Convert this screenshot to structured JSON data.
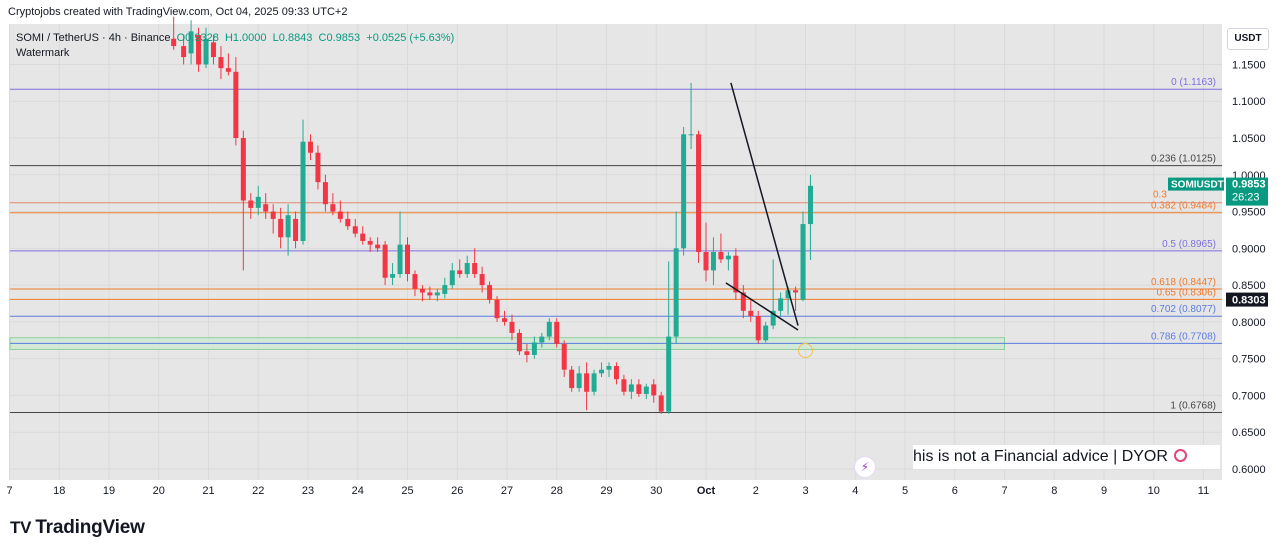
{
  "caption": "Cryptojobs created with TradingView.com, Oct 04, 2025 09:33 UTC+2",
  "legend": {
    "symbol": "SOMI / TetherUS · 4h · Binance",
    "open": "O0.9328",
    "high": "H1.0000",
    "low": "L0.8843",
    "close": "C0.9853",
    "change": "+0.0525 (+5.63%)",
    "watermark": "Watermark"
  },
  "currency": "USDT",
  "disclaimer": "his is not a Financial advice | DYOR",
  "brand": "TradingView",
  "chart_data": {
    "type": "candlestick",
    "price_range": [
      0.585,
      1.205
    ],
    "y_ticks": [
      "0.6000",
      "0.6500",
      "0.7000",
      "0.7500",
      "0.8000",
      "0.8500",
      "0.9000",
      "0.9500",
      "1.0000",
      "1.0500",
      "1.1000",
      "1.1500"
    ],
    "x_ticks": [
      {
        "label": "7",
        "day": -6
      },
      {
        "label": "18",
        "day": -5
      },
      {
        "label": "19",
        "day": -4
      },
      {
        "label": "20",
        "day": -3
      },
      {
        "label": "21",
        "day": -2
      },
      {
        "label": "22",
        "day": -1
      },
      {
        "label": "23",
        "day": 0
      },
      {
        "label": "24",
        "day": 1
      },
      {
        "label": "25",
        "day": 2
      },
      {
        "label": "26",
        "day": 3
      },
      {
        "label": "27",
        "day": 4
      },
      {
        "label": "28",
        "day": 5
      },
      {
        "label": "29",
        "day": 6
      },
      {
        "label": "30",
        "day": 7
      },
      {
        "label": "Oct",
        "day": 8
      },
      {
        "label": "2",
        "day": 9
      },
      {
        "label": "3",
        "day": 10
      },
      {
        "label": "4",
        "day": 11
      },
      {
        "label": "5",
        "day": 12
      },
      {
        "label": "6",
        "day": 13
      },
      {
        "label": "7",
        "day": 14
      },
      {
        "label": "8",
        "day": 15
      },
      {
        "label": "9",
        "day": 16
      },
      {
        "label": "10",
        "day": 17
      },
      {
        "label": "11",
        "day": 18
      }
    ],
    "fib_levels": [
      {
        "label": "0 (1.1163)",
        "value": 1.1163,
        "color": "#7c6fe0"
      },
      {
        "label": "0.236 (1.0125)",
        "value": 1.0125,
        "color": "#444444"
      },
      {
        "label": "0.382 (0.9484)",
        "value": 0.9484,
        "color": "#f07a2b"
      },
      {
        "label": "0.5 (0.8965)",
        "value": 0.8965,
        "color": "#7c6fe0"
      },
      {
        "label": "0.618 (0.8447)",
        "value": 0.8447,
        "color": "#f07a2b"
      },
      {
        "label": "0.65 (0.8306)",
        "value": 0.8306,
        "color": "#f07a2b"
      },
      {
        "label": "0.702 (0.8077)",
        "value": 0.8077,
        "color": "#5b7be0"
      },
      {
        "label": "0.786 (0.7708)",
        "value": 0.7708,
        "color": "#5b7be0"
      },
      {
        "label": "1 (0.6768)",
        "value": 0.6768,
        "color": "#444444"
      }
    ],
    "partial_fib_label": {
      "label": "0.3",
      "value": 0.9484,
      "color": "#f07a2b"
    },
    "extra_line": {
      "value": 0.962,
      "color": "#e08a70"
    },
    "support_zone": {
      "from": 0.7625,
      "to": 0.7785,
      "start_day": -6,
      "end_day": 14
    },
    "price_tags": [
      {
        "symbol": "SOMIUSDT",
        "price": "0.9853",
        "countdown": "26:23",
        "value": 0.9853,
        "color": "#089981"
      },
      {
        "price": "0.8303",
        "value": 0.8303,
        "color": "#131722"
      }
    ],
    "trendlines": [
      {
        "from": [
          8.5,
          1.125
        ],
        "to": [
          9.85,
          0.795
        ],
        "color": "#131722"
      },
      {
        "from": [
          8.4,
          0.853
        ],
        "to": [
          9.85,
          0.789
        ],
        "color": "#131722"
      }
    ],
    "marker_circle": {
      "day": 10.0,
      "value": 0.761
    },
    "candles": [
      {
        "d": -2.7,
        "o": 1.185,
        "h": 1.215,
        "l": 1.17,
        "c": 1.175
      },
      {
        "d": -2.5,
        "o": 1.175,
        "h": 1.19,
        "l": 1.15,
        "c": 1.16
      },
      {
        "d": -2.35,
        "o": 1.165,
        "h": 1.21,
        "l": 1.15,
        "c": 1.195
      },
      {
        "d": -2.2,
        "o": 1.19,
        "h": 1.2,
        "l": 1.14,
        "c": 1.15
      },
      {
        "d": -2.05,
        "o": 1.15,
        "h": 1.2,
        "l": 1.145,
        "c": 1.185
      },
      {
        "d": -1.9,
        "o": 1.18,
        "h": 1.19,
        "l": 1.15,
        "c": 1.16
      },
      {
        "d": -1.75,
        "o": 1.16,
        "h": 1.175,
        "l": 1.13,
        "c": 1.145
      },
      {
        "d": -1.6,
        "o": 1.145,
        "h": 1.165,
        "l": 1.135,
        "c": 1.14
      },
      {
        "d": -1.45,
        "o": 1.14,
        "h": 1.16,
        "l": 1.04,
        "c": 1.05
      },
      {
        "d": -1.3,
        "o": 1.05,
        "h": 1.06,
        "l": 0.87,
        "c": 0.965
      },
      {
        "d": -1.15,
        "o": 0.965,
        "h": 0.975,
        "l": 0.94,
        "c": 0.955
      },
      {
        "d": -1.0,
        "o": 0.955,
        "h": 0.985,
        "l": 0.945,
        "c": 0.97
      },
      {
        "d": -0.85,
        "o": 0.96,
        "h": 0.975,
        "l": 0.94,
        "c": 0.95
      },
      {
        "d": -0.7,
        "o": 0.95,
        "h": 0.96,
        "l": 0.92,
        "c": 0.94
      },
      {
        "d": -0.55,
        "o": 0.94,
        "h": 0.955,
        "l": 0.9,
        "c": 0.915
      },
      {
        "d": -0.4,
        "o": 0.915,
        "h": 0.96,
        "l": 0.89,
        "c": 0.945
      },
      {
        "d": -0.25,
        "o": 0.94,
        "h": 0.95,
        "l": 0.9,
        "c": 0.91
      },
      {
        "d": -0.1,
        "o": 0.91,
        "h": 1.075,
        "l": 0.905,
        "c": 1.045
      },
      {
        "d": 0.05,
        "o": 1.045,
        "h": 1.055,
        "l": 1.02,
        "c": 1.03
      },
      {
        "d": 0.2,
        "o": 1.03,
        "h": 1.04,
        "l": 0.98,
        "c": 0.99
      },
      {
        "d": 0.35,
        "o": 0.99,
        "h": 1.0,
        "l": 0.95,
        "c": 0.96
      },
      {
        "d": 0.5,
        "o": 0.96,
        "h": 0.975,
        "l": 0.945,
        "c": 0.95
      },
      {
        "d": 0.65,
        "o": 0.95,
        "h": 0.965,
        "l": 0.935,
        "c": 0.94
      },
      {
        "d": 0.8,
        "o": 0.94,
        "h": 0.95,
        "l": 0.925,
        "c": 0.93
      },
      {
        "d": 0.95,
        "o": 0.93,
        "h": 0.94,
        "l": 0.915,
        "c": 0.92
      },
      {
        "d": 1.1,
        "o": 0.92,
        "h": 0.93,
        "l": 0.905,
        "c": 0.91
      },
      {
        "d": 1.25,
        "o": 0.91,
        "h": 0.915,
        "l": 0.895,
        "c": 0.905
      },
      {
        "d": 1.4,
        "o": 0.905,
        "h": 0.915,
        "l": 0.895,
        "c": 0.9
      },
      {
        "d": 1.55,
        "o": 0.905,
        "h": 0.91,
        "l": 0.85,
        "c": 0.86
      },
      {
        "d": 1.7,
        "o": 0.86,
        "h": 0.88,
        "l": 0.85,
        "c": 0.865
      },
      {
        "d": 1.85,
        "o": 0.865,
        "h": 0.95,
        "l": 0.86,
        "c": 0.905
      },
      {
        "d": 2.0,
        "o": 0.905,
        "h": 0.915,
        "l": 0.855,
        "c": 0.865
      },
      {
        "d": 2.15,
        "o": 0.865,
        "h": 0.87,
        "l": 0.835,
        "c": 0.845
      },
      {
        "d": 2.3,
        "o": 0.845,
        "h": 0.85,
        "l": 0.828,
        "c": 0.84
      },
      {
        "d": 2.45,
        "o": 0.84,
        "h": 0.848,
        "l": 0.83,
        "c": 0.836
      },
      {
        "d": 2.6,
        "o": 0.836,
        "h": 0.845,
        "l": 0.828,
        "c": 0.84
      },
      {
        "d": 2.75,
        "o": 0.838,
        "h": 0.86,
        "l": 0.832,
        "c": 0.85
      },
      {
        "d": 2.9,
        "o": 0.85,
        "h": 0.88,
        "l": 0.845,
        "c": 0.87
      },
      {
        "d": 3.05,
        "o": 0.87,
        "h": 0.885,
        "l": 0.86,
        "c": 0.865
      },
      {
        "d": 3.2,
        "o": 0.865,
        "h": 0.89,
        "l": 0.86,
        "c": 0.88
      },
      {
        "d": 3.35,
        "o": 0.88,
        "h": 0.9,
        "l": 0.86,
        "c": 0.865
      },
      {
        "d": 3.5,
        "o": 0.865,
        "h": 0.875,
        "l": 0.84,
        "c": 0.85
      },
      {
        "d": 3.65,
        "o": 0.85,
        "h": 0.855,
        "l": 0.825,
        "c": 0.83
      },
      {
        "d": 3.8,
        "o": 0.83,
        "h": 0.835,
        "l": 0.8,
        "c": 0.805
      },
      {
        "d": 3.95,
        "o": 0.805,
        "h": 0.815,
        "l": 0.795,
        "c": 0.8
      },
      {
        "d": 4.1,
        "o": 0.8,
        "h": 0.81,
        "l": 0.775,
        "c": 0.785
      },
      {
        "d": 4.25,
        "o": 0.785,
        "h": 0.79,
        "l": 0.755,
        "c": 0.76
      },
      {
        "d": 4.4,
        "o": 0.76,
        "h": 0.77,
        "l": 0.745,
        "c": 0.755
      },
      {
        "d": 4.55,
        "o": 0.755,
        "h": 0.78,
        "l": 0.75,
        "c": 0.772
      },
      {
        "d": 4.7,
        "o": 0.772,
        "h": 0.785,
        "l": 0.765,
        "c": 0.78
      },
      {
        "d": 4.85,
        "o": 0.78,
        "h": 0.805,
        "l": 0.775,
        "c": 0.8
      },
      {
        "d": 5.0,
        "o": 0.8,
        "h": 0.805,
        "l": 0.765,
        "c": 0.77
      },
      {
        "d": 5.15,
        "o": 0.77,
        "h": 0.775,
        "l": 0.725,
        "c": 0.735
      },
      {
        "d": 5.3,
        "o": 0.735,
        "h": 0.74,
        "l": 0.705,
        "c": 0.71
      },
      {
        "d": 5.45,
        "o": 0.71,
        "h": 0.74,
        "l": 0.705,
        "c": 0.73
      },
      {
        "d": 5.6,
        "o": 0.73,
        "h": 0.745,
        "l": 0.68,
        "c": 0.705
      },
      {
        "d": 5.75,
        "o": 0.705,
        "h": 0.735,
        "l": 0.7,
        "c": 0.73
      },
      {
        "d": 5.9,
        "o": 0.73,
        "h": 0.745,
        "l": 0.725,
        "c": 0.735
      },
      {
        "d": 6.05,
        "o": 0.735,
        "h": 0.745,
        "l": 0.725,
        "c": 0.74
      },
      {
        "d": 6.2,
        "o": 0.74,
        "h": 0.745,
        "l": 0.715,
        "c": 0.722
      },
      {
        "d": 6.35,
        "o": 0.722,
        "h": 0.728,
        "l": 0.7,
        "c": 0.705
      },
      {
        "d": 6.5,
        "o": 0.705,
        "h": 0.722,
        "l": 0.695,
        "c": 0.715
      },
      {
        "d": 6.65,
        "o": 0.715,
        "h": 0.722,
        "l": 0.698,
        "c": 0.702
      },
      {
        "d": 6.8,
        "o": 0.702,
        "h": 0.716,
        "l": 0.695,
        "c": 0.712
      },
      {
        "d": 6.95,
        "o": 0.715,
        "h": 0.722,
        "l": 0.69,
        "c": 0.7
      },
      {
        "d": 7.1,
        "o": 0.7,
        "h": 0.705,
        "l": 0.675,
        "c": 0.678
      },
      {
        "d": 7.25,
        "o": 0.678,
        "h": 0.882,
        "l": 0.675,
        "c": 0.78
      },
      {
        "d": 7.4,
        "o": 0.78,
        "h": 0.95,
        "l": 0.77,
        "c": 0.9
      },
      {
        "d": 7.55,
        "o": 0.9,
        "h": 1.065,
        "l": 0.89,
        "c": 1.055
      },
      {
        "d": 7.7,
        "o": 1.055,
        "h": 1.125,
        "l": 1.035,
        "c": 1.055
      },
      {
        "d": 7.85,
        "o": 1.055,
        "h": 1.06,
        "l": 0.88,
        "c": 0.895
      },
      {
        "d": 8.0,
        "o": 0.895,
        "h": 0.935,
        "l": 0.855,
        "c": 0.87
      },
      {
        "d": 8.15,
        "o": 0.87,
        "h": 0.915,
        "l": 0.85,
        "c": 0.895
      },
      {
        "d": 8.3,
        "o": 0.895,
        "h": 0.92,
        "l": 0.88,
        "c": 0.885
      },
      {
        "d": 8.45,
        "o": 0.885,
        "h": 0.895,
        "l": 0.87,
        "c": 0.89
      },
      {
        "d": 8.6,
        "o": 0.89,
        "h": 0.9,
        "l": 0.83,
        "c": 0.84
      },
      {
        "d": 8.75,
        "o": 0.84,
        "h": 0.85,
        "l": 0.805,
        "c": 0.815
      },
      {
        "d": 8.9,
        "o": 0.815,
        "h": 0.832,
        "l": 0.8,
        "c": 0.808
      },
      {
        "d": 9.05,
        "o": 0.808,
        "h": 0.815,
        "l": 0.77,
        "c": 0.775
      },
      {
        "d": 9.2,
        "o": 0.775,
        "h": 0.8,
        "l": 0.772,
        "c": 0.795
      },
      {
        "d": 9.35,
        "o": 0.795,
        "h": 0.885,
        "l": 0.79,
        "c": 0.815
      },
      {
        "d": 9.5,
        "o": 0.815,
        "h": 0.84,
        "l": 0.808,
        "c": 0.832
      },
      {
        "d": 9.65,
        "o": 0.832,
        "h": 0.848,
        "l": 0.81,
        "c": 0.843
      },
      {
        "d": 9.8,
        "o": 0.843,
        "h": 0.848,
        "l": 0.815,
        "c": 0.84
      },
      {
        "d": 9.95,
        "o": 0.83,
        "h": 0.95,
        "l": 0.828,
        "c": 0.933
      },
      {
        "d": 10.1,
        "o": 0.933,
        "h": 1.0,
        "l": 0.884,
        "c": 0.985
      }
    ]
  }
}
